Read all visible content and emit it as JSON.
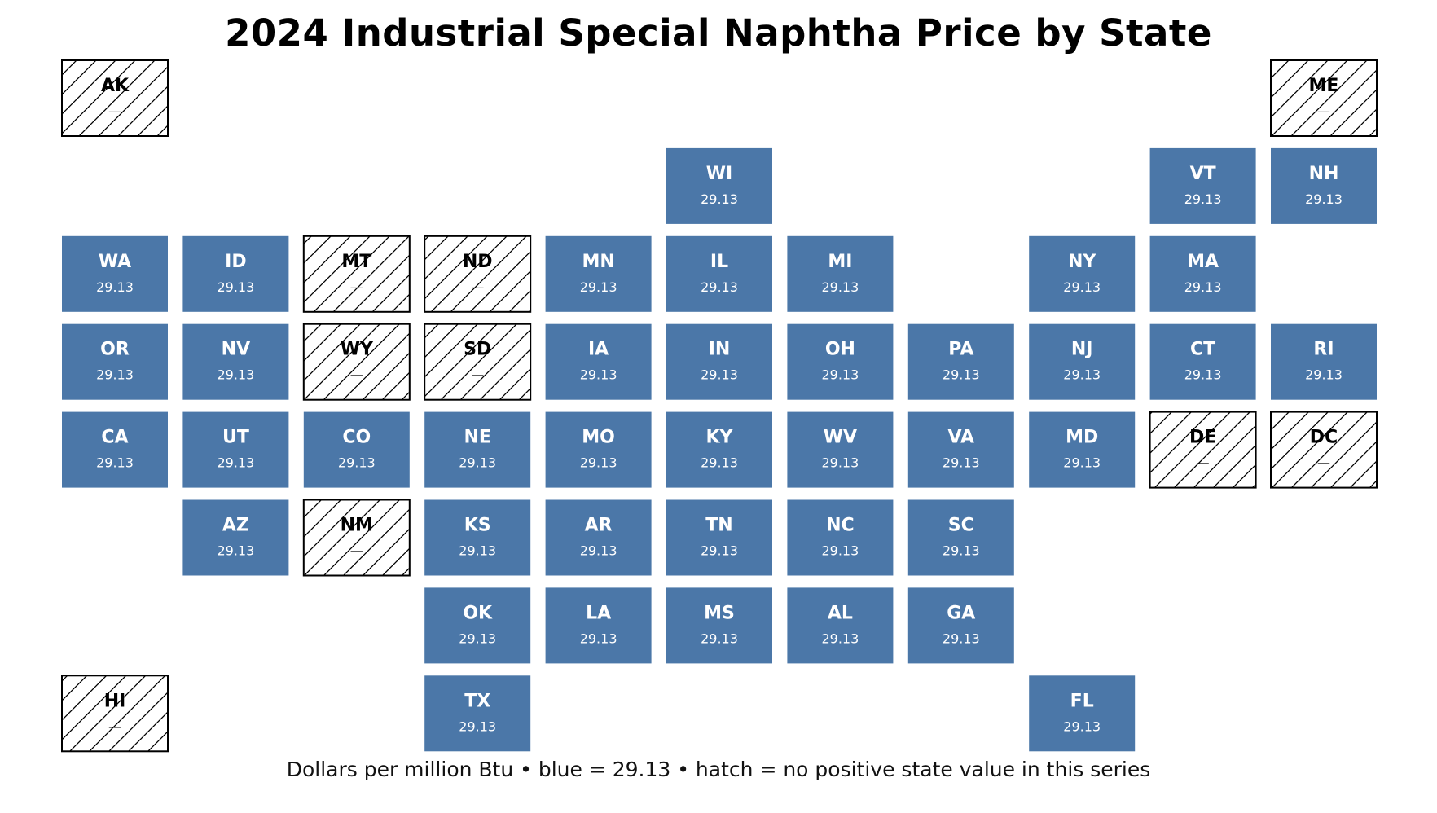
{
  "title": "2024 Industrial Special Naphtha Price by State",
  "footer": "Dollars per million Btu • blue = 29.13 • hatch = no positive state value in this series",
  "colors": {
    "value_fill": "#4b77a8",
    "value_text": "#ffffff",
    "nodata_stroke": "#000000",
    "background": "#ffffff"
  },
  "chart_data": {
    "type": "tile-grid-map",
    "unit": "Dollars per million Btu",
    "no_data_label": "—",
    "tiles": [
      {
        "state": "AK",
        "row": 0,
        "col": 0,
        "value": null
      },
      {
        "state": "ME",
        "row": 0,
        "col": 10,
        "value": null
      },
      {
        "state": "WI",
        "row": 1,
        "col": 5,
        "value": 29.13
      },
      {
        "state": "VT",
        "row": 1,
        "col": 9,
        "value": 29.13
      },
      {
        "state": "NH",
        "row": 1,
        "col": 10,
        "value": 29.13
      },
      {
        "state": "WA",
        "row": 2,
        "col": 0,
        "value": 29.13
      },
      {
        "state": "ID",
        "row": 2,
        "col": 1,
        "value": 29.13
      },
      {
        "state": "MT",
        "row": 2,
        "col": 2,
        "value": null
      },
      {
        "state": "ND",
        "row": 2,
        "col": 3,
        "value": null
      },
      {
        "state": "MN",
        "row": 2,
        "col": 4,
        "value": 29.13
      },
      {
        "state": "IL",
        "row": 2,
        "col": 5,
        "value": 29.13
      },
      {
        "state": "MI",
        "row": 2,
        "col": 6,
        "value": 29.13
      },
      {
        "state": "NY",
        "row": 2,
        "col": 8,
        "value": 29.13
      },
      {
        "state": "MA",
        "row": 2,
        "col": 9,
        "value": 29.13
      },
      {
        "state": "OR",
        "row": 3,
        "col": 0,
        "value": 29.13
      },
      {
        "state": "NV",
        "row": 3,
        "col": 1,
        "value": 29.13
      },
      {
        "state": "WY",
        "row": 3,
        "col": 2,
        "value": null
      },
      {
        "state": "SD",
        "row": 3,
        "col": 3,
        "value": null
      },
      {
        "state": "IA",
        "row": 3,
        "col": 4,
        "value": 29.13
      },
      {
        "state": "IN",
        "row": 3,
        "col": 5,
        "value": 29.13
      },
      {
        "state": "OH",
        "row": 3,
        "col": 6,
        "value": 29.13
      },
      {
        "state": "PA",
        "row": 3,
        "col": 7,
        "value": 29.13
      },
      {
        "state": "NJ",
        "row": 3,
        "col": 8,
        "value": 29.13
      },
      {
        "state": "CT",
        "row": 3,
        "col": 9,
        "value": 29.13
      },
      {
        "state": "RI",
        "row": 3,
        "col": 10,
        "value": 29.13
      },
      {
        "state": "CA",
        "row": 4,
        "col": 0,
        "value": 29.13
      },
      {
        "state": "UT",
        "row": 4,
        "col": 1,
        "value": 29.13
      },
      {
        "state": "CO",
        "row": 4,
        "col": 2,
        "value": 29.13
      },
      {
        "state": "NE",
        "row": 4,
        "col": 3,
        "value": 29.13
      },
      {
        "state": "MO",
        "row": 4,
        "col": 4,
        "value": 29.13
      },
      {
        "state": "KY",
        "row": 4,
        "col": 5,
        "value": 29.13
      },
      {
        "state": "WV",
        "row": 4,
        "col": 6,
        "value": 29.13
      },
      {
        "state": "VA",
        "row": 4,
        "col": 7,
        "value": 29.13
      },
      {
        "state": "MD",
        "row": 4,
        "col": 8,
        "value": 29.13
      },
      {
        "state": "DE",
        "row": 4,
        "col": 9,
        "value": null
      },
      {
        "state": "DC",
        "row": 4,
        "col": 10,
        "value": null
      },
      {
        "state": "AZ",
        "row": 5,
        "col": 1,
        "value": 29.13
      },
      {
        "state": "NM",
        "row": 5,
        "col": 2,
        "value": null
      },
      {
        "state": "KS",
        "row": 5,
        "col": 3,
        "value": 29.13
      },
      {
        "state": "AR",
        "row": 5,
        "col": 4,
        "value": 29.13
      },
      {
        "state": "TN",
        "row": 5,
        "col": 5,
        "value": 29.13
      },
      {
        "state": "NC",
        "row": 5,
        "col": 6,
        "value": 29.13
      },
      {
        "state": "SC",
        "row": 5,
        "col": 7,
        "value": 29.13
      },
      {
        "state": "OK",
        "row": 6,
        "col": 3,
        "value": 29.13
      },
      {
        "state": "LA",
        "row": 6,
        "col": 4,
        "value": 29.13
      },
      {
        "state": "MS",
        "row": 6,
        "col": 5,
        "value": 29.13
      },
      {
        "state": "AL",
        "row": 6,
        "col": 6,
        "value": 29.13
      },
      {
        "state": "GA",
        "row": 6,
        "col": 7,
        "value": 29.13
      },
      {
        "state": "HI",
        "row": 7,
        "col": 0,
        "value": null
      },
      {
        "state": "TX",
        "row": 7,
        "col": 3,
        "value": 29.13
      },
      {
        "state": "FL",
        "row": 7,
        "col": 8,
        "value": 29.13
      }
    ]
  }
}
